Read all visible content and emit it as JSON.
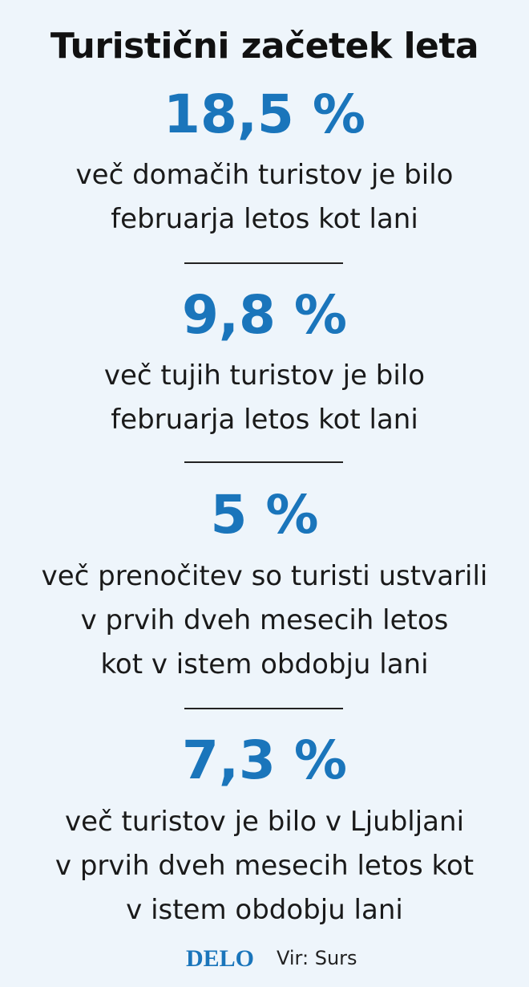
{
  "header": {
    "title": "Turistični začetek leta"
  },
  "items": [
    {
      "stat": "18,5 %",
      "lines": [
        "več domačih turistov je bilo",
        "februarja letos kot lani"
      ]
    },
    {
      "stat": "9,8 %",
      "lines": [
        "več tujih turistov je bilo",
        "februarja letos kot lani"
      ]
    },
    {
      "stat": "5 %",
      "lines": [
        "več prenočitev so turisti ustvarili",
        "v prvih dveh mesecih letos",
        "kot v istem obdobju lani"
      ]
    },
    {
      "stat": "7,3 %",
      "lines": [
        "več turistov je bilo v Ljubljani",
        "v prvih dveh mesecih letos kot",
        "v istem obdobju lani"
      ]
    }
  ],
  "footer": {
    "logo": "DELO",
    "source": "Vir: Surs"
  }
}
